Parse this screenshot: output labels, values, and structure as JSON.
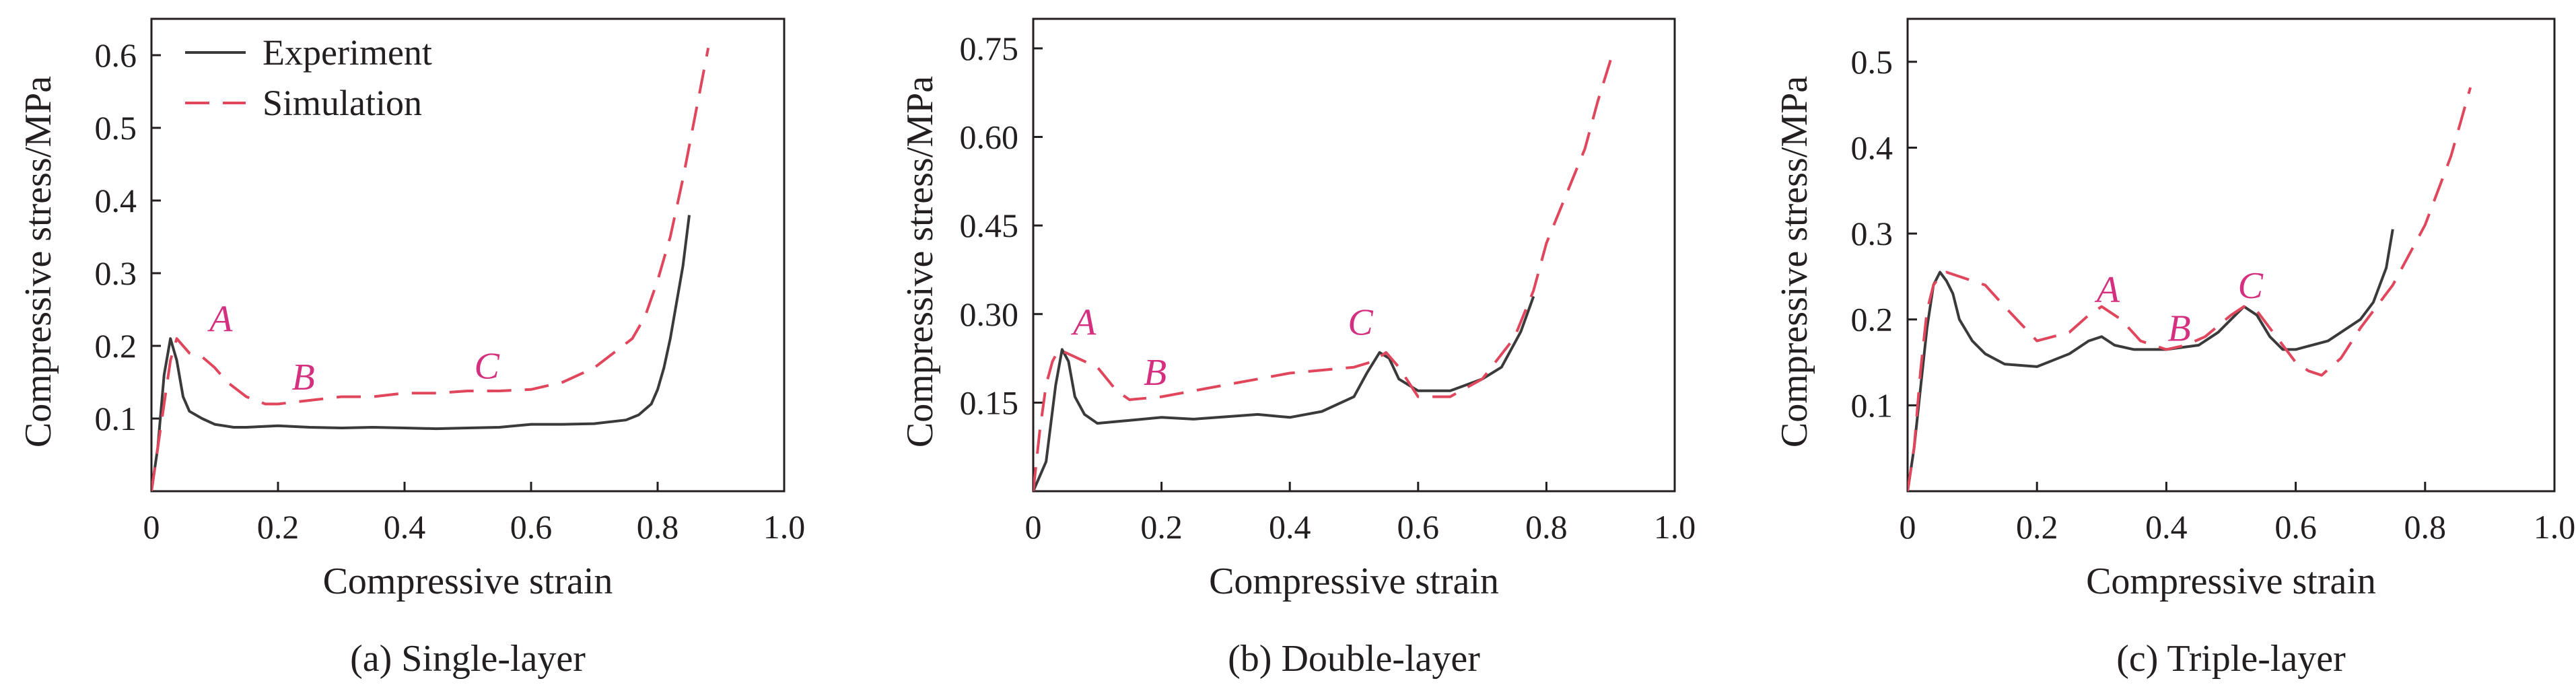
{
  "colors": {
    "experiment": "#3a3a3a",
    "simulation": "#e0465c",
    "annotation": "#d4307f",
    "axis": "#231f20"
  },
  "chart_data": [
    {
      "type": "line",
      "caption": "(a) Single-layer",
      "xlabel": "Compressive strain",
      "ylabel": "Compressive stress/MPa",
      "xlim": [
        0,
        1.0
      ],
      "ylim": [
        0,
        0.65
      ],
      "x_ticks": [
        0,
        0.2,
        0.4,
        0.6,
        0.8,
        1.0
      ],
      "x_tick_labels": [
        "0",
        "0.2",
        "0.4",
        "0.6",
        "0.8",
        "1.0"
      ],
      "y_ticks": [
        0.1,
        0.2,
        0.3,
        0.4,
        0.5,
        0.6
      ],
      "y_tick_labels": [
        "0.1",
        "0.2",
        "0.3",
        "0.4",
        "0.5",
        "0.6"
      ],
      "legend": {
        "position": "top-left",
        "entries": [
          "Experiment",
          "Simulation"
        ]
      },
      "annotations": [
        {
          "text": "A",
          "x": 0.11,
          "y": 0.22
        },
        {
          "text": "B",
          "x": 0.24,
          "y": 0.14
        },
        {
          "text": "C",
          "x": 0.53,
          "y": 0.155
        }
      ],
      "series": [
        {
          "name": "Experiment",
          "style": "solid",
          "x": [
            0.0,
            0.01,
            0.02,
            0.03,
            0.04,
            0.05,
            0.06,
            0.08,
            0.1,
            0.13,
            0.15,
            0.2,
            0.25,
            0.3,
            0.35,
            0.4,
            0.45,
            0.5,
            0.55,
            0.6,
            0.65,
            0.7,
            0.75,
            0.77,
            0.79,
            0.8,
            0.81,
            0.82,
            0.83,
            0.84,
            0.85
          ],
          "y": [
            0.0,
            0.06,
            0.16,
            0.21,
            0.18,
            0.13,
            0.11,
            0.1,
            0.092,
            0.088,
            0.088,
            0.09,
            0.088,
            0.087,
            0.088,
            0.087,
            0.086,
            0.087,
            0.088,
            0.092,
            0.092,
            0.093,
            0.098,
            0.105,
            0.12,
            0.14,
            0.17,
            0.21,
            0.26,
            0.31,
            0.38
          ]
        },
        {
          "name": "Simulation",
          "style": "dashed",
          "x": [
            0.0,
            0.01,
            0.02,
            0.03,
            0.04,
            0.05,
            0.06,
            0.08,
            0.1,
            0.12,
            0.15,
            0.18,
            0.2,
            0.25,
            0.3,
            0.35,
            0.4,
            0.45,
            0.5,
            0.55,
            0.6,
            0.65,
            0.7,
            0.73,
            0.76,
            0.78,
            0.8,
            0.82,
            0.84,
            0.86,
            0.88
          ],
          "y": [
            0.0,
            0.06,
            0.12,
            0.18,
            0.21,
            0.2,
            0.19,
            0.185,
            0.17,
            0.15,
            0.13,
            0.12,
            0.12,
            0.125,
            0.13,
            0.13,
            0.135,
            0.135,
            0.138,
            0.138,
            0.14,
            0.15,
            0.17,
            0.19,
            0.21,
            0.24,
            0.29,
            0.35,
            0.43,
            0.52,
            0.61
          ]
        }
      ]
    },
    {
      "type": "line",
      "caption": "(b) Double-layer",
      "xlabel": "Compressive strain",
      "ylabel": "Compressive stress/MPa",
      "xlim": [
        0,
        1.0
      ],
      "ylim": [
        0,
        0.8
      ],
      "x_ticks": [
        0,
        0.2,
        0.4,
        0.6,
        0.8,
        1.0
      ],
      "x_tick_labels": [
        "0",
        "0.2",
        "0.4",
        "0.6",
        "0.8",
        "1.0"
      ],
      "y_ticks": [
        0.15,
        0.3,
        0.45,
        0.6,
        0.75
      ],
      "y_tick_labels": [
        "0.15",
        "0.30",
        "0.45",
        "0.60",
        "0.75"
      ],
      "annotations": [
        {
          "text": "A",
          "x": 0.08,
          "y": 0.265
        },
        {
          "text": "B",
          "x": 0.19,
          "y": 0.18
        },
        {
          "text": "C",
          "x": 0.51,
          "y": 0.265
        }
      ],
      "series": [
        {
          "name": "Experiment",
          "style": "solid",
          "x": [
            0.0,
            0.02,
            0.035,
            0.045,
            0.055,
            0.065,
            0.08,
            0.1,
            0.15,
            0.2,
            0.25,
            0.3,
            0.35,
            0.4,
            0.45,
            0.5,
            0.52,
            0.54,
            0.555,
            0.57,
            0.6,
            0.65,
            0.7,
            0.73,
            0.76,
            0.78
          ],
          "y": [
            0.0,
            0.05,
            0.18,
            0.24,
            0.22,
            0.16,
            0.13,
            0.115,
            0.12,
            0.125,
            0.122,
            0.126,
            0.13,
            0.125,
            0.135,
            0.16,
            0.2,
            0.235,
            0.225,
            0.19,
            0.17,
            0.17,
            0.19,
            0.21,
            0.27,
            0.33
          ]
        },
        {
          "name": "Simulation",
          "style": "dashed",
          "x": [
            0.0,
            0.01,
            0.02,
            0.03,
            0.04,
            0.05,
            0.06,
            0.08,
            0.1,
            0.13,
            0.15,
            0.2,
            0.25,
            0.3,
            0.35,
            0.4,
            0.45,
            0.5,
            0.53,
            0.55,
            0.57,
            0.6,
            0.65,
            0.7,
            0.75,
            0.78,
            0.8,
            0.83,
            0.86,
            0.88,
            0.9
          ],
          "y": [
            0.0,
            0.1,
            0.18,
            0.22,
            0.24,
            0.235,
            0.23,
            0.22,
            0.21,
            0.17,
            0.155,
            0.16,
            0.17,
            0.18,
            0.19,
            0.2,
            0.205,
            0.21,
            0.22,
            0.235,
            0.21,
            0.16,
            0.16,
            0.19,
            0.26,
            0.34,
            0.42,
            0.5,
            0.58,
            0.66,
            0.73
          ]
        }
      ]
    },
    {
      "type": "line",
      "caption": "(c) Triple-layer",
      "xlabel": "Compressive strain",
      "ylabel": "Compressive stress/MPa",
      "xlim": [
        0,
        1.0
      ],
      "ylim": [
        0,
        0.55
      ],
      "x_ticks": [
        0,
        0.2,
        0.4,
        0.6,
        0.8,
        1.0
      ],
      "x_tick_labels": [
        "0",
        "0.2",
        "0.4",
        "0.6",
        "0.8",
        "1.0"
      ],
      "y_ticks": [
        0.1,
        0.2,
        0.3,
        0.4,
        0.5
      ],
      "y_tick_labels": [
        "0.1",
        "0.2",
        "0.3",
        "0.4",
        "0.5"
      ],
      "annotations": [
        {
          "text": "A",
          "x": 0.31,
          "y": 0.22
        },
        {
          "text": "B",
          "x": 0.42,
          "y": 0.175
        },
        {
          "text": "C",
          "x": 0.53,
          "y": 0.225
        }
      ],
      "series": [
        {
          "name": "Experiment",
          "style": "solid",
          "x": [
            0.0,
            0.01,
            0.02,
            0.03,
            0.04,
            0.05,
            0.06,
            0.07,
            0.08,
            0.1,
            0.12,
            0.15,
            0.2,
            0.25,
            0.28,
            0.3,
            0.32,
            0.35,
            0.4,
            0.45,
            0.48,
            0.5,
            0.52,
            0.54,
            0.56,
            0.58,
            0.6,
            0.65,
            0.7,
            0.72,
            0.74,
            0.75
          ],
          "y": [
            0.0,
            0.05,
            0.12,
            0.19,
            0.24,
            0.255,
            0.245,
            0.23,
            0.2,
            0.175,
            0.16,
            0.148,
            0.145,
            0.16,
            0.175,
            0.18,
            0.17,
            0.165,
            0.165,
            0.17,
            0.185,
            0.2,
            0.215,
            0.205,
            0.18,
            0.165,
            0.165,
            0.175,
            0.2,
            0.22,
            0.26,
            0.305
          ]
        },
        {
          "name": "Simulation",
          "style": "dashed",
          "x": [
            0.0,
            0.01,
            0.02,
            0.03,
            0.04,
            0.05,
            0.06,
            0.08,
            0.1,
            0.12,
            0.15,
            0.2,
            0.25,
            0.28,
            0.3,
            0.33,
            0.36,
            0.4,
            0.43,
            0.46,
            0.5,
            0.52,
            0.54,
            0.57,
            0.6,
            0.62,
            0.64,
            0.67,
            0.7,
            0.75,
            0.8,
            0.84,
            0.87
          ],
          "y": [
            0.0,
            0.05,
            0.14,
            0.21,
            0.24,
            0.25,
            0.255,
            0.25,
            0.245,
            0.24,
            0.215,
            0.175,
            0.185,
            0.205,
            0.215,
            0.2,
            0.175,
            0.165,
            0.17,
            0.18,
            0.205,
            0.215,
            0.21,
            0.18,
            0.15,
            0.14,
            0.135,
            0.155,
            0.19,
            0.24,
            0.31,
            0.39,
            0.47
          ]
        }
      ]
    }
  ]
}
